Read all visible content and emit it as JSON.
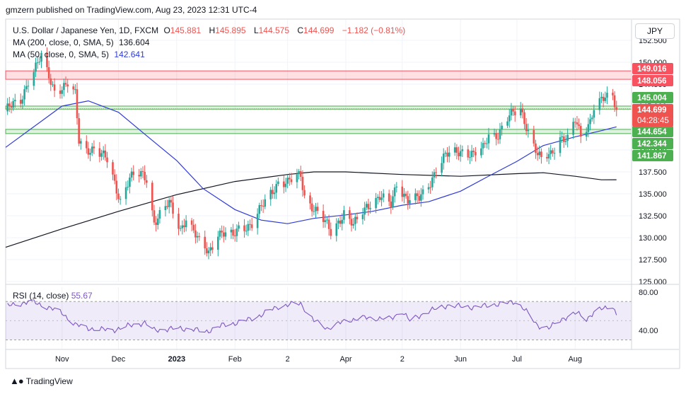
{
  "header": {
    "text": "gmzern published on TradingView.com, Aug 23, 2023 12:31 UTC-4"
  },
  "legend": {
    "pair": "U.S. Dollar / Japanese Yen, 1D, FXCM",
    "o_label": "O",
    "o_value": "145.881",
    "h_label": "H",
    "h_value": "145.895",
    "l_label": "L",
    "l_value": "144.575",
    "c_label": "C",
    "c_value": "144.699",
    "change": "−1.182 (−0.81%)",
    "ma200_label": "MA (200, close, 0, SMA, 5)",
    "ma200_value": "136.604",
    "ma50_label": "MA (50, close, 0, SMA, 5)",
    "ma50_value": "142.641",
    "rsi_label": "RSI (14, close)",
    "rsi_value": "55.67"
  },
  "currency_button": "JPY",
  "footer": {
    "brand": "TradingView"
  },
  "colors": {
    "up": "#26a69a",
    "down": "#ef5350",
    "ma200": "#131722",
    "ma50": "#2f3bd6",
    "rsi": "#7e57c2",
    "red_zone": "#f7525f",
    "green_zone": "#4caf50"
  },
  "chart_data": {
    "type": "candlestick",
    "price_axis": {
      "ylim": [
        125.0,
        152.5
      ],
      "ticks": [
        "125.000",
        "127.500",
        "130.000",
        "132.500",
        "135.000",
        "137.500",
        "140.000",
        "142.500",
        "145.000",
        "147.500",
        "150.000",
        "152.500"
      ]
    },
    "rsi_axis": {
      "ylim": [
        20,
        85
      ],
      "ticks": [
        "80.00",
        "40.00"
      ],
      "band": [
        30,
        70
      ]
    },
    "x_axis": {
      "range": [
        "2022-10-02",
        "2023-08-31"
      ],
      "labels": [
        {
          "text": "Nov",
          "date": "2022-11-01",
          "bold": false
        },
        {
          "text": "Dec",
          "date": "2022-12-01",
          "bold": false
        },
        {
          "text": "2023",
          "date": "2023-01-01",
          "bold": true
        },
        {
          "text": "Feb",
          "date": "2023-02-01",
          "bold": false
        },
        {
          "text": "2",
          "date": "2023-03-01",
          "bold": false
        },
        {
          "text": "Apr",
          "date": "2023-04-01",
          "bold": false
        },
        {
          "text": "2",
          "date": "2023-05-01",
          "bold": false
        },
        {
          "text": "Jun",
          "date": "2023-06-01",
          "bold": false
        },
        {
          "text": "Jul",
          "date": "2023-07-01",
          "bold": false
        },
        {
          "text": "Aug",
          "date": "2023-08-01",
          "bold": false
        }
      ]
    },
    "zones": [
      {
        "name": "red-zone",
        "color": "red",
        "low": 148.056,
        "high": 149.016
      },
      {
        "name": "green-zone-upper",
        "color": "green",
        "low": 144.654,
        "high": 145.004
      },
      {
        "name": "green-zone-lower",
        "color": "green",
        "low": 141.867,
        "high": 142.344
      }
    ],
    "price_labels": [
      {
        "text": "149.016",
        "price": 149.016,
        "kind": "red"
      },
      {
        "text": "148.056",
        "price": 148.056,
        "kind": "red"
      },
      {
        "text": "145.004",
        "price": 145.004,
        "kind": "green"
      },
      {
        "text": "144.654",
        "price": 144.654,
        "kind": "green"
      },
      {
        "text": "142.344",
        "price": 142.344,
        "kind": "green"
      },
      {
        "text": "141.867",
        "price": 141.867,
        "kind": "green"
      }
    ],
    "last_price": {
      "price": 144.699,
      "text": "144.699",
      "countdown": "04:28:45"
    },
    "close_series": [
      [
        "2022-10-03",
        144.7
      ],
      [
        "2022-10-10",
        145.6
      ],
      [
        "2022-10-14",
        148.0
      ],
      [
        "2022-10-21",
        150.6
      ],
      [
        "2022-10-24",
        148.8
      ],
      [
        "2022-10-28",
        146.8
      ],
      [
        "2022-11-04",
        147.5
      ],
      [
        "2022-11-08",
        146.2
      ],
      [
        "2022-11-10",
        141.0
      ],
      [
        "2022-11-14",
        140.1
      ],
      [
        "2022-11-18",
        140.2
      ],
      [
        "2022-11-25",
        138.8
      ],
      [
        "2022-12-02",
        134.3
      ],
      [
        "2022-12-07",
        136.8
      ],
      [
        "2022-12-13",
        137.2
      ],
      [
        "2022-12-16",
        136.8
      ],
      [
        "2022-12-20",
        131.8
      ],
      [
        "2022-12-28",
        133.9
      ],
      [
        "2023-01-03",
        131.0
      ],
      [
        "2023-01-06",
        132.3
      ],
      [
        "2023-01-13",
        129.4
      ],
      [
        "2023-01-18",
        128.4
      ],
      [
        "2023-01-23",
        130.6
      ],
      [
        "2023-01-31",
        130.1
      ],
      [
        "2023-02-03",
        131.2
      ],
      [
        "2023-02-10",
        131.5
      ],
      [
        "2023-02-17",
        134.1
      ],
      [
        "2023-02-24",
        136.4
      ],
      [
        "2023-03-01",
        136.2
      ],
      [
        "2023-03-08",
        137.2
      ],
      [
        "2023-03-10",
        134.8
      ],
      [
        "2023-03-15",
        133.3
      ],
      [
        "2023-03-22",
        131.4
      ],
      [
        "2023-03-24",
        130.7
      ],
      [
        "2023-03-31",
        132.8
      ],
      [
        "2023-04-05",
        131.3
      ],
      [
        "2023-04-12",
        133.7
      ],
      [
        "2023-04-19",
        134.6
      ],
      [
        "2023-04-25",
        133.7
      ],
      [
        "2023-04-28",
        136.3
      ],
      [
        "2023-05-04",
        134.3
      ],
      [
        "2023-05-10",
        134.4
      ],
      [
        "2023-05-16",
        136.4
      ],
      [
        "2023-05-19",
        137.9
      ],
      [
        "2023-05-24",
        139.3
      ],
      [
        "2023-05-30",
        139.8
      ],
      [
        "2023-06-02",
        140.0
      ],
      [
        "2023-06-08",
        139.4
      ],
      [
        "2023-06-13",
        140.1
      ],
      [
        "2023-06-16",
        141.8
      ],
      [
        "2023-06-21",
        141.8
      ],
      [
        "2023-06-27",
        143.8
      ],
      [
        "2023-06-30",
        144.3
      ],
      [
        "2023-07-03",
        144.7
      ],
      [
        "2023-07-07",
        142.2
      ],
      [
        "2023-07-12",
        139.4
      ],
      [
        "2023-07-14",
        138.8
      ],
      [
        "2023-07-19",
        139.6
      ],
      [
        "2023-07-24",
        141.5
      ],
      [
        "2023-07-28",
        141.1
      ],
      [
        "2023-08-01",
        143.3
      ],
      [
        "2023-08-04",
        141.7
      ],
      [
        "2023-08-09",
        143.4
      ],
      [
        "2023-08-11",
        144.9
      ],
      [
        "2023-08-15",
        145.6
      ],
      [
        "2023-08-17",
        145.8
      ],
      [
        "2023-08-21",
        146.2
      ],
      [
        "2023-08-23",
        144.7
      ]
    ],
    "ma50": [
      [
        "2022-10-02",
        140.3
      ],
      [
        "2022-11-01",
        145.0
      ],
      [
        "2022-11-15",
        145.6
      ],
      [
        "2022-12-01",
        144.3
      ],
      [
        "2022-12-15",
        141.8
      ],
      [
        "2023-01-01",
        138.8
      ],
      [
        "2023-01-15",
        135.6
      ],
      [
        "2023-02-01",
        133.2
      ],
      [
        "2023-02-15",
        132.0
      ],
      [
        "2023-03-01",
        131.6
      ],
      [
        "2023-03-15",
        132.2
      ],
      [
        "2023-04-01",
        132.6
      ],
      [
        "2023-04-15",
        133.0
      ],
      [
        "2023-05-01",
        133.7
      ],
      [
        "2023-05-15",
        134.1
      ],
      [
        "2023-06-01",
        135.3
      ],
      [
        "2023-06-15",
        136.9
      ],
      [
        "2023-07-01",
        138.7
      ],
      [
        "2023-07-15",
        140.5
      ],
      [
        "2023-08-01",
        141.5
      ],
      [
        "2023-08-15",
        142.2
      ],
      [
        "2023-08-23",
        142.641
      ]
    ],
    "ma200": [
      [
        "2022-10-02",
        128.9
      ],
      [
        "2022-11-01",
        131.0
      ],
      [
        "2022-12-01",
        133.0
      ],
      [
        "2023-01-01",
        134.9
      ],
      [
        "2023-02-01",
        136.4
      ],
      [
        "2023-03-01",
        137.2
      ],
      [
        "2023-03-15",
        137.5
      ],
      [
        "2023-04-01",
        137.5
      ],
      [
        "2023-05-01",
        137.2
      ],
      [
        "2023-06-01",
        137.0
      ],
      [
        "2023-07-01",
        137.3
      ],
      [
        "2023-07-15",
        137.4
      ],
      [
        "2023-08-01",
        137.0
      ],
      [
        "2023-08-15",
        136.6
      ],
      [
        "2023-08-23",
        136.604
      ]
    ],
    "rsi": [
      [
        "2022-10-02",
        65
      ],
      [
        "2022-10-15",
        70
      ],
      [
        "2022-10-25",
        64
      ],
      [
        "2022-11-01",
        58
      ],
      [
        "2022-11-08",
        46
      ],
      [
        "2022-11-15",
        42
      ],
      [
        "2022-11-28",
        40
      ],
      [
        "2022-12-05",
        44
      ],
      [
        "2022-12-15",
        48
      ],
      [
        "2022-12-20",
        40
      ],
      [
        "2023-01-01",
        42
      ],
      [
        "2023-01-10",
        41
      ],
      [
        "2023-01-16",
        38
      ],
      [
        "2023-01-25",
        45
      ],
      [
        "2023-02-05",
        49
      ],
      [
        "2023-02-15",
        56
      ],
      [
        "2023-02-24",
        65
      ],
      [
        "2023-03-08",
        68
      ],
      [
        "2023-03-15",
        50
      ],
      [
        "2023-03-22",
        42
      ],
      [
        "2023-04-01",
        50
      ],
      [
        "2023-04-10",
        53
      ],
      [
        "2023-04-25",
        52
      ],
      [
        "2023-05-01",
        60
      ],
      [
        "2023-05-05",
        50
      ],
      [
        "2023-05-15",
        60
      ],
      [
        "2023-05-25",
        66
      ],
      [
        "2023-06-08",
        64
      ],
      [
        "2023-06-20",
        67
      ],
      [
        "2023-06-30",
        70
      ],
      [
        "2023-07-05",
        62
      ],
      [
        "2023-07-12",
        45
      ],
      [
        "2023-07-18",
        42
      ],
      [
        "2023-07-25",
        52
      ],
      [
        "2023-08-02",
        58
      ],
      [
        "2023-08-07",
        52
      ],
      [
        "2023-08-12",
        60
      ],
      [
        "2023-08-18",
        64
      ],
      [
        "2023-08-21",
        66
      ],
      [
        "2023-08-23",
        55.67
      ]
    ]
  }
}
